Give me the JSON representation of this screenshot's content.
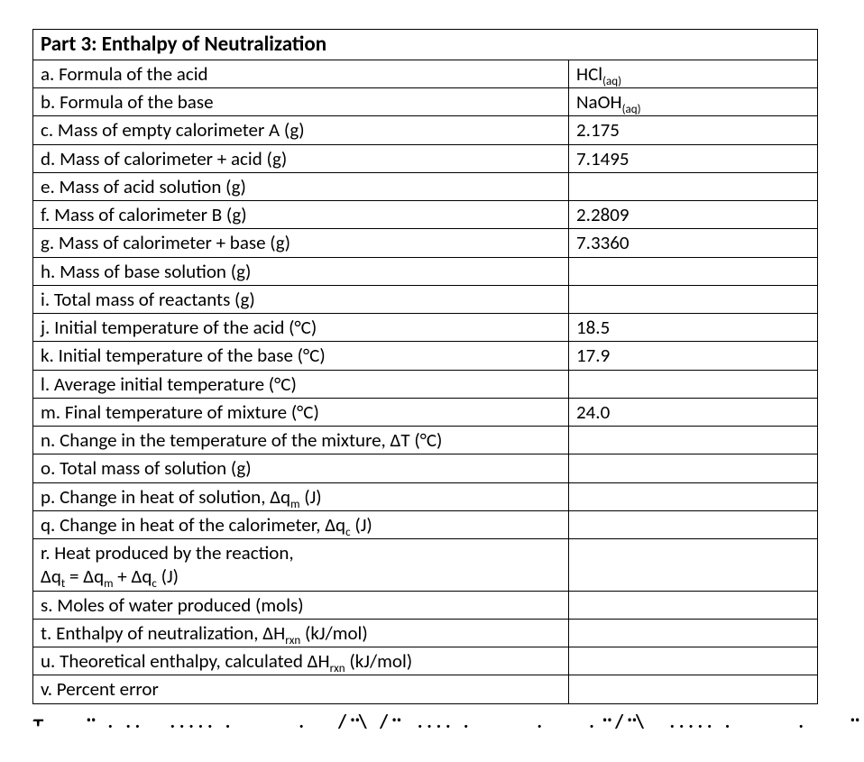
{
  "title": "Part 3: Enthalpy of Neutralization",
  "rows": [
    {
      "label_html": "a. Formula of the acid",
      "value_html": "HCl<span class=\"sub\">(aq)</span>"
    },
    {
      "label_html": "b. Formula of the base",
      "value_html": "NaOH<span class=\"sub\">(aq)</span>"
    },
    {
      "label_html": "c. Mass of empty calorimeter A (g)",
      "value_html": "2.175"
    },
    {
      "label_html": "d. Mass of calorimeter + acid (g)",
      "value_html": "7.1495"
    },
    {
      "label_html": "e. Mass of acid solution (g)",
      "value_html": ""
    },
    {
      "label_html": "f. Mass of calorimeter B (g)",
      "value_html": "2.2809"
    },
    {
      "label_html": "g. Mass of calorimeter + base (g)",
      "value_html": "7.3360"
    },
    {
      "label_html": "h. Mass of base solution (g)",
      "value_html": ""
    },
    {
      "label_html": "i. Total mass of reactants (g)",
      "value_html": ""
    },
    {
      "label_html": "j. Initial temperature of the acid (°C)",
      "value_html": "18.5"
    },
    {
      "label_html": "k. Initial temperature of the base (°C)",
      "value_html": "17.9"
    },
    {
      "label_html": "l. Average initial temperature (°C)",
      "value_html": ""
    },
    {
      "label_html": "m. Final temperature of mixture (°C)",
      "value_html": "24.0"
    },
    {
      "label_html": "n. Change in the temperature of the mixture, ΔT (°C)",
      "value_html": ""
    },
    {
      "label_html": "o. Total mass of solution (g)",
      "value_html": ""
    },
    {
      "label_html": "p. Change in heat of solution, Δq<span class=\"sub\">m</span> (J)",
      "value_html": ""
    },
    {
      "label_html": "q. Change in heat of the calorimeter, Δq<span class=\"sub\">c</span> (J)",
      "value_html": ""
    },
    {
      "label_html": "r. Heat produced by the reaction,<br>Δq<span class=\"sub\">t</span> = Δq<span class=\"sub\">m</span> + Δq<span class=\"sub\">c</span> (J)",
      "value_html": ""
    },
    {
      "label_html": "s. Moles of water produced (mols)",
      "value_html": ""
    },
    {
      "label_html": "t. Enthalpy of neutralization, ΔH<span class=\"sub\">rxn</span> (kJ/mol)",
      "value_html": ""
    },
    {
      "label_html": "u. Theoretical enthalpy, calculated ΔH<span class=\"sub\">rxn</span> (kJ/mol)",
      "value_html": ""
    },
    {
      "label_html": "v. Percent error",
      "value_html": ""
    }
  ],
  "footer_fragment": "᠇         ᠃   .   . .       . . . . .   .                .        /᠃\\   /᠃    . . . .   .                .       ᠋    . ᠃ /᠃\\      . . . . .   .                .       ᠋   ᠃         /"
}
